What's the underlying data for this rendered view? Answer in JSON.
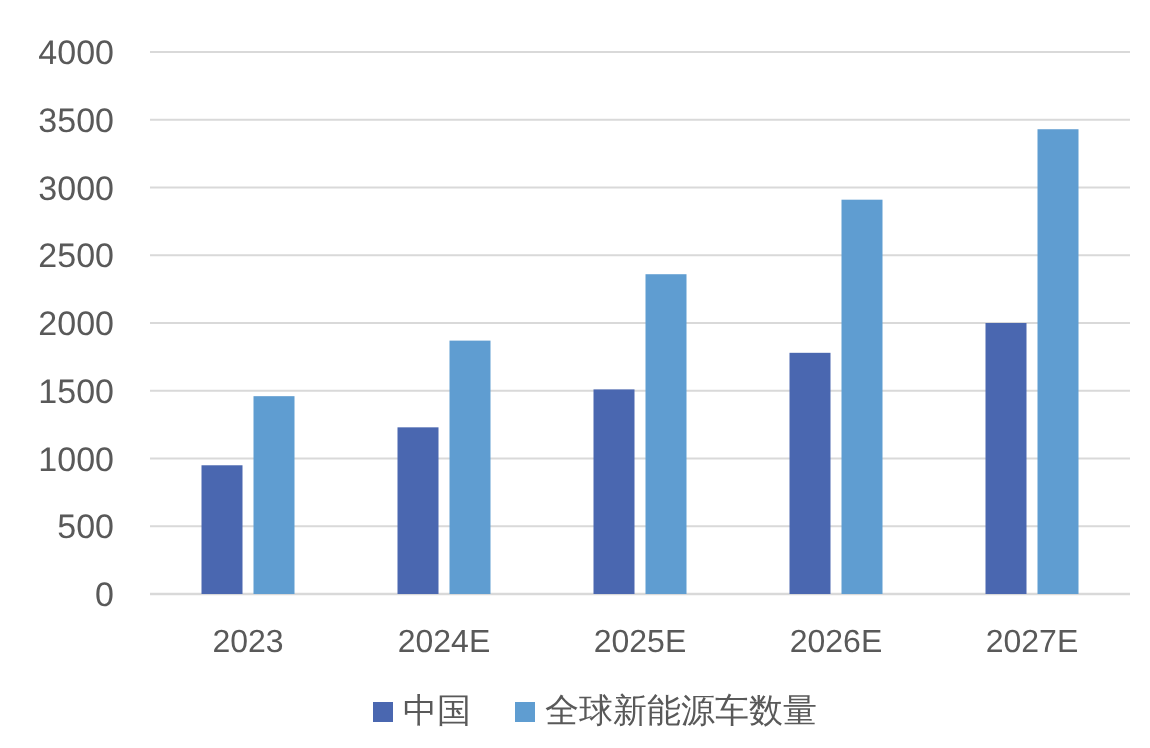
{
  "chart_data": {
    "type": "bar",
    "categories": [
      "2023",
      "2024E",
      "2025E",
      "2026E",
      "2027E"
    ],
    "series": [
      {
        "name": "中国",
        "color": "#4a67b0",
        "values": [
          950,
          1230,
          1510,
          1780,
          2000
        ]
      },
      {
        "name": "全球新能源车数量",
        "color": "#5f9dd1",
        "values": [
          1460,
          1870,
          2360,
          2910,
          3430
        ]
      }
    ],
    "ylim": [
      0,
      4000
    ],
    "yticks": [
      0,
      500,
      1000,
      1500,
      2000,
      2500,
      3000,
      3500,
      4000
    ],
    "grid": "y",
    "legend": "bottom"
  }
}
